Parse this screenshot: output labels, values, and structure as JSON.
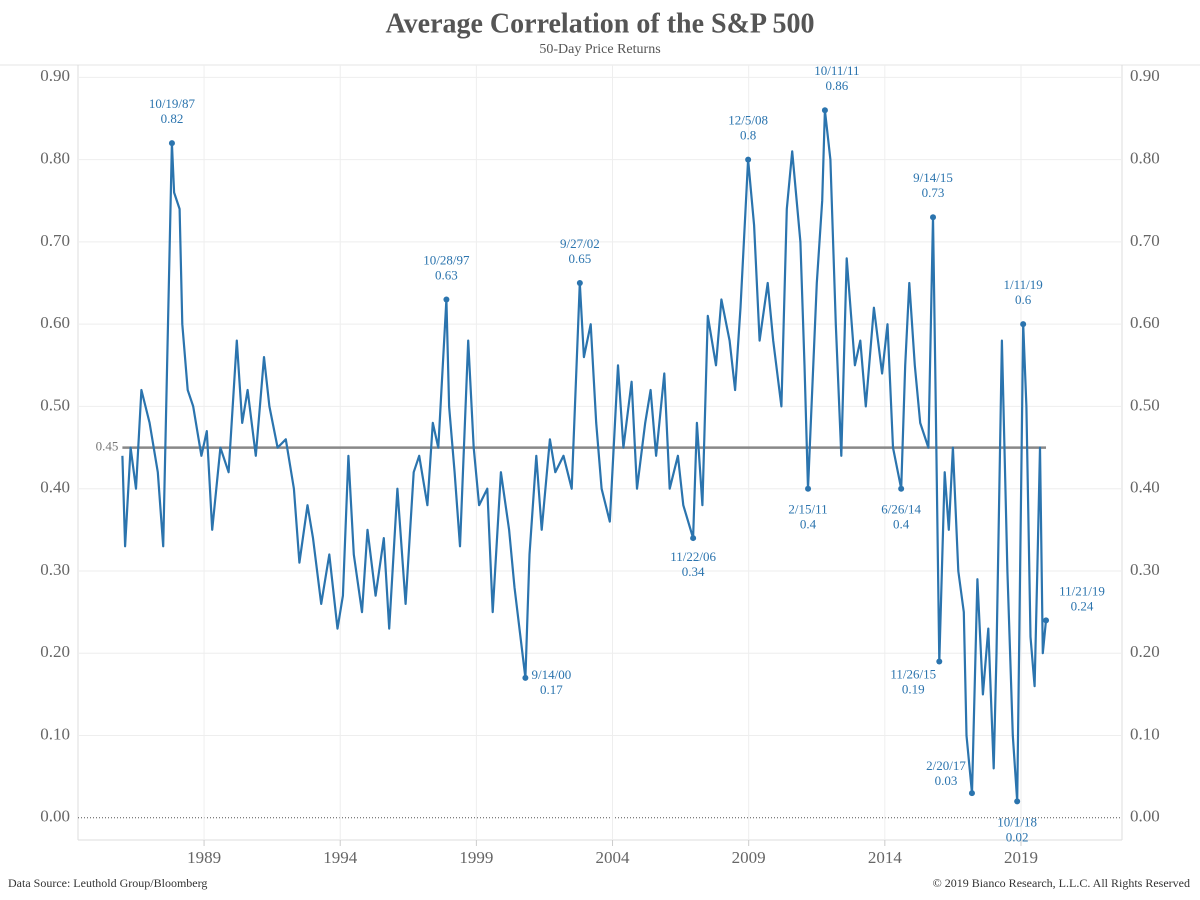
{
  "chart_data": {
    "type": "line",
    "title": "Average Correlation of the S&P 500",
    "subtitle": "50-Day Price Returns",
    "source": "Data Source: Leuthold Group/Bloomberg",
    "copyright": "© 2019 Bianco Research, L.L.C. All Rights Reserved",
    "xlim": [
      1984.37,
      2022.71
    ],
    "xticks": [
      1989,
      1994,
      1999,
      2004,
      2009,
      2014,
      2019
    ],
    "ylim": [
      -0.027,
      0.915
    ],
    "yticks": [
      {
        "value": 0,
        "label": "0.00"
      },
      {
        "value": 0.1,
        "label": "0.10"
      },
      {
        "value": 0.2,
        "label": "0.20"
      },
      {
        "value": 0.3,
        "label": "0.30"
      },
      {
        "value": 0.4,
        "label": "0.40"
      },
      {
        "value": 0.5,
        "label": "0.50"
      },
      {
        "value": 0.6,
        "label": "0.60"
      },
      {
        "value": 0.7,
        "label": "0.70"
      },
      {
        "value": 0.8,
        "label": "0.80"
      },
      {
        "value": 0.9,
        "label": "0.90"
      }
    ],
    "grid": true,
    "mean": 0.45,
    "mean_color": "#888888",
    "series": [
      {
        "name": "Average Correlation",
        "color": "#2b74ae",
        "x": [
          1986.0,
          1986.1,
          1986.3,
          1986.5,
          1986.7,
          1987.0,
          1987.3,
          1987.5,
          1987.82,
          1987.9,
          1988.1,
          1988.2,
          1988.4,
          1988.6,
          1988.9,
          1989.1,
          1989.3,
          1989.6,
          1989.9,
          1990.2,
          1990.4,
          1990.6,
          1990.9,
          1991.2,
          1991.4,
          1991.7,
          1992.0,
          1992.3,
          1992.5,
          1992.8,
          1993.0,
          1993.3,
          1993.6,
          1993.9,
          1994.1,
          1994.3,
          1994.5,
          1994.8,
          1995.0,
          1995.3,
          1995.6,
          1995.8,
          1996.1,
          1996.4,
          1996.7,
          1996.9,
          1997.2,
          1997.4,
          1997.6,
          1997.9,
          1998.0,
          1998.2,
          1998.4,
          1998.7,
          1998.9,
          1999.1,
          1999.4,
          1999.6,
          1999.9,
          2000.2,
          2000.4,
          2000.8,
          2000.95,
          2001.2,
          2001.4,
          2001.7,
          2001.9,
          2002.2,
          2002.5,
          2002.8,
          2002.95,
          2003.2,
          2003.4,
          2003.6,
          2003.9,
          2004.2,
          2004.4,
          2004.7,
          2004.9,
          2005.2,
          2005.4,
          2005.6,
          2005.9,
          2006.1,
          2006.4,
          2006.6,
          2006.96,
          2007.1,
          2007.3,
          2007.5,
          2007.8,
          2008.0,
          2008.3,
          2008.5,
          2008.7,
          2008.98,
          2009.2,
          2009.4,
          2009.7,
          2009.9,
          2010.2,
          2010.4,
          2010.6,
          2010.9,
          2011.05,
          2011.18,
          2011.5,
          2011.7,
          2011.8,
          2012.0,
          2012.2,
          2012.4,
          2012.6,
          2012.9,
          2013.1,
          2013.3,
          2013.6,
          2013.9,
          2014.1,
          2014.3,
          2014.6,
          2014.75,
          2014.9,
          2015.1,
          2015.3,
          2015.6,
          2015.77,
          2015.85,
          2016.0,
          2016.2,
          2016.35,
          2016.5,
          2016.7,
          2016.9,
          2017.0,
          2017.2,
          2017.4,
          2017.6,
          2017.8,
          2018.0,
          2018.1,
          2018.3,
          2018.5,
          2018.7,
          2018.86,
          2019.08,
          2019.2,
          2019.35,
          2019.5,
          2019.6,
          2019.7,
          2019.8,
          2019.92
        ],
        "values": [
          0.44,
          0.33,
          0.45,
          0.4,
          0.52,
          0.48,
          0.42,
          0.33,
          0.82,
          0.76,
          0.74,
          0.6,
          0.52,
          0.5,
          0.44,
          0.47,
          0.35,
          0.45,
          0.42,
          0.58,
          0.48,
          0.52,
          0.44,
          0.56,
          0.5,
          0.45,
          0.46,
          0.4,
          0.31,
          0.38,
          0.34,
          0.26,
          0.32,
          0.23,
          0.27,
          0.44,
          0.32,
          0.25,
          0.35,
          0.27,
          0.34,
          0.23,
          0.4,
          0.26,
          0.42,
          0.44,
          0.38,
          0.48,
          0.45,
          0.63,
          0.5,
          0.42,
          0.33,
          0.58,
          0.45,
          0.38,
          0.4,
          0.25,
          0.42,
          0.35,
          0.28,
          0.17,
          0.32,
          0.44,
          0.35,
          0.46,
          0.42,
          0.44,
          0.4,
          0.65,
          0.56,
          0.6,
          0.48,
          0.4,
          0.36,
          0.55,
          0.45,
          0.53,
          0.4,
          0.48,
          0.52,
          0.44,
          0.54,
          0.4,
          0.44,
          0.38,
          0.34,
          0.48,
          0.38,
          0.61,
          0.55,
          0.63,
          0.58,
          0.52,
          0.62,
          0.8,
          0.72,
          0.58,
          0.65,
          0.58,
          0.5,
          0.74,
          0.81,
          0.7,
          0.55,
          0.4,
          0.65,
          0.75,
          0.86,
          0.8,
          0.6,
          0.44,
          0.68,
          0.55,
          0.58,
          0.5,
          0.62,
          0.54,
          0.6,
          0.45,
          0.4,
          0.55,
          0.65,
          0.55,
          0.48,
          0.45,
          0.73,
          0.55,
          0.19,
          0.42,
          0.35,
          0.45,
          0.3,
          0.25,
          0.1,
          0.03,
          0.29,
          0.15,
          0.23,
          0.06,
          0.2,
          0.58,
          0.3,
          0.1,
          0.02,
          0.6,
          0.5,
          0.22,
          0.16,
          0.3,
          0.45,
          0.2,
          0.24
        ]
      }
    ],
    "annotations": [
      {
        "label": "10/19/87",
        "x": 1987.82,
        "value": 0.82
      },
      {
        "label": "10/28/97",
        "x": 1997.9,
        "value": 0.63
      },
      {
        "label": "9/27/02",
        "x": 2002.8,
        "value": 0.65
      },
      {
        "label": "12/5/08",
        "x": 2008.98,
        "value": 0.8
      },
      {
        "label": "10/11/11",
        "x": 2011.8,
        "value": 0.86
      },
      {
        "label": "9/14/15",
        "x": 2015.77,
        "value": 0.73
      },
      {
        "label": "1/11/19",
        "x": 2019.08,
        "value": 0.6
      },
      {
        "label": "9/14/00",
        "x": 2000.8,
        "value": 0.17
      },
      {
        "label": "11/22/06",
        "x": 2006.96,
        "value": 0.34
      },
      {
        "label": "2/15/11",
        "x": 2011.18,
        "value": 0.4
      },
      {
        "label": "6/26/14",
        "x": 2014.6,
        "value": 0.4
      },
      {
        "label": "11/26/15",
        "x": 2016.0,
        "value": 0.19
      },
      {
        "label": "2/20/17",
        "x": 2017.2,
        "value": 0.03
      },
      {
        "label": "10/1/18",
        "x": 2018.86,
        "value": 0.02
      },
      {
        "label": "11/21/19",
        "x": 2019.92,
        "value": 0.24
      }
    ]
  }
}
